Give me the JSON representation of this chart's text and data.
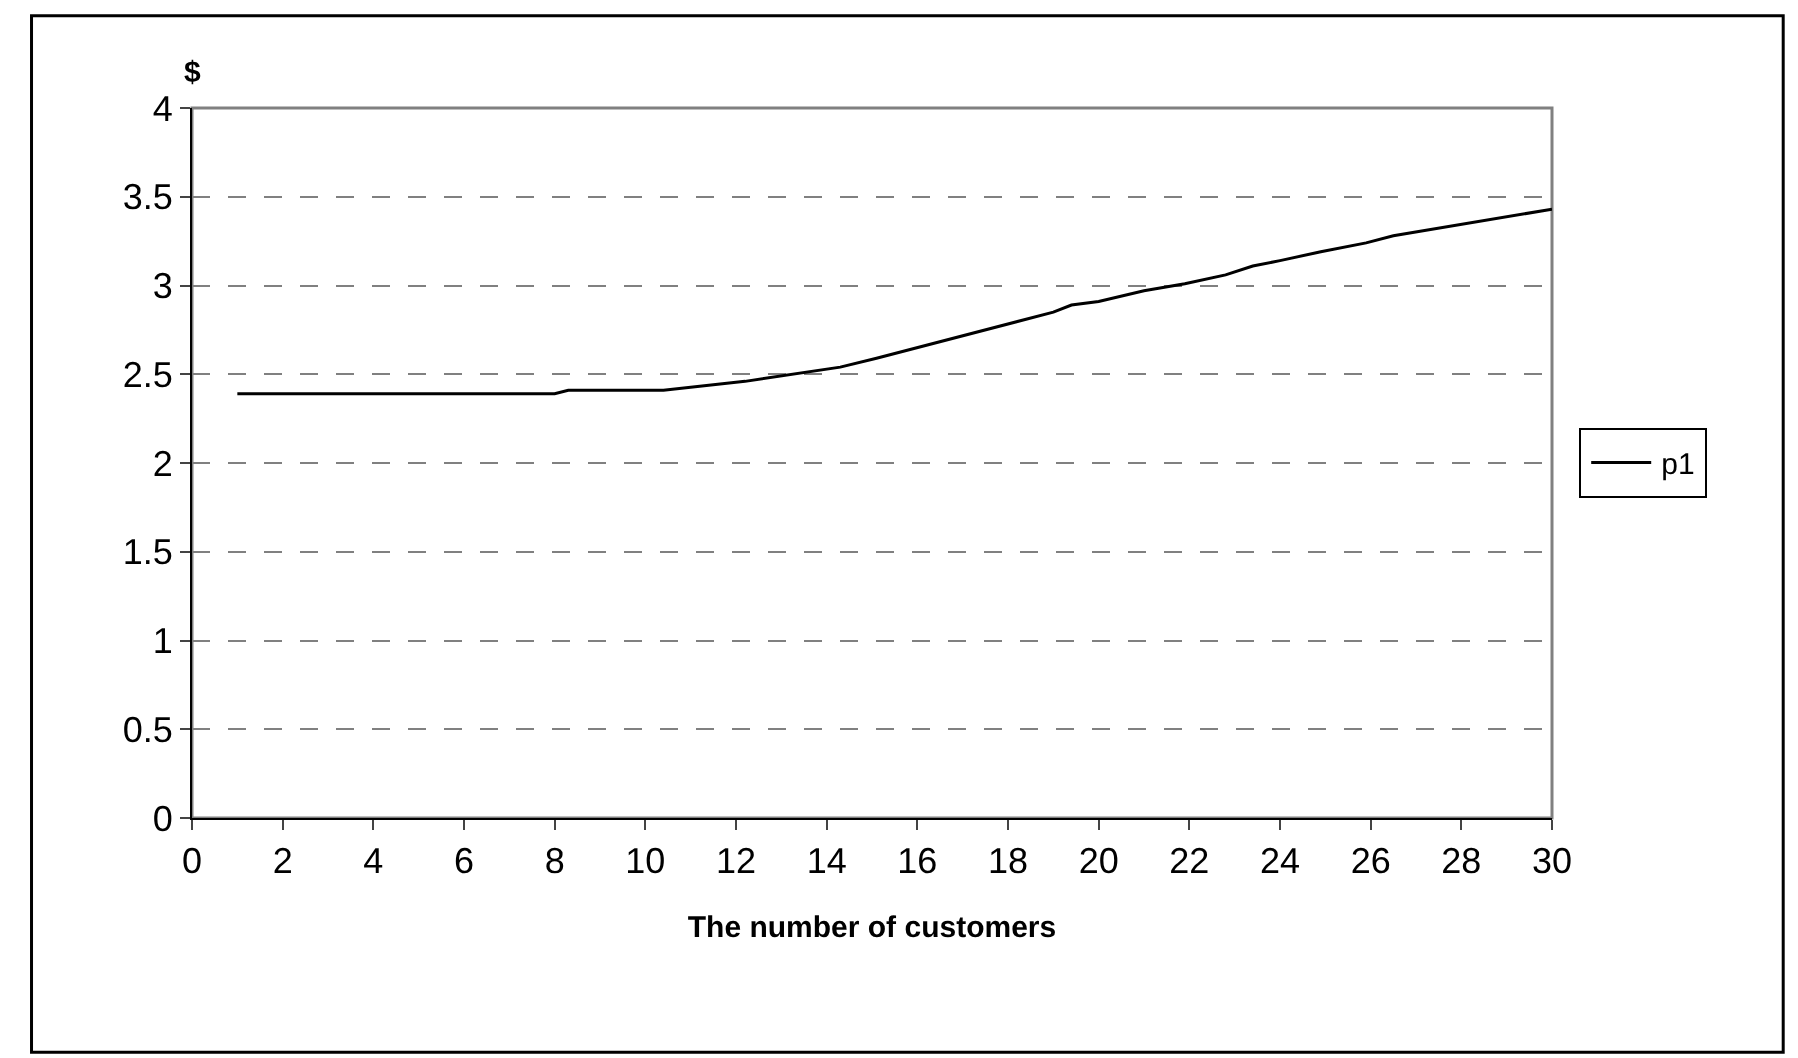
{
  "chart_data": {
    "type": "line",
    "ylabel": "$",
    "xlabel": "The number of customers",
    "xlim": [
      0,
      30
    ],
    "xticks": [
      0,
      2,
      4,
      6,
      8,
      10,
      12,
      14,
      16,
      18,
      20,
      22,
      24,
      26,
      28,
      30
    ],
    "ylim": [
      0,
      4
    ],
    "yticks": [
      0,
      0.5,
      1,
      1.5,
      2,
      2.5,
      3,
      3.5,
      4
    ],
    "grid": "y",
    "legend": "right",
    "marker": "none",
    "line_style": "solid",
    "series": [
      {
        "name": "p1",
        "color": "#000000",
        "x": [
          1,
          8,
          8.3,
          10.4,
          12.2,
          14.3,
          15.1,
          19.0,
          19.4,
          20.0,
          21.0,
          21.9,
          22.8,
          23.4,
          24.0,
          24.9,
          25.9,
          26.5,
          30
        ],
        "values": [
          2.39,
          2.39,
          2.41,
          2.41,
          2.46,
          2.54,
          2.59,
          2.85,
          2.89,
          2.91,
          2.97,
          3.01,
          3.06,
          3.11,
          3.14,
          3.19,
          3.24,
          3.28,
          3.43
        ]
      }
    ]
  }
}
